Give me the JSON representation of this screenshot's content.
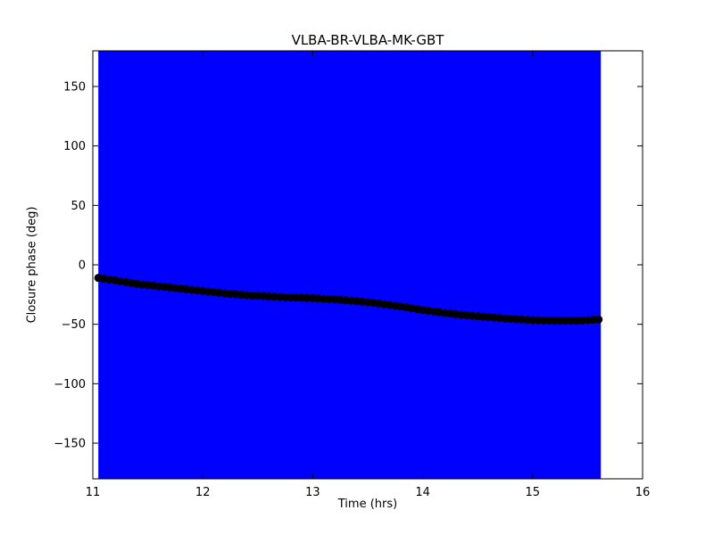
{
  "figure": {
    "background": "#ffffff"
  },
  "chart_data": {
    "type": "scatter",
    "title": "VLBA-BR-VLBA-MK-GBT",
    "xlabel": "Time (hrs)",
    "ylabel": "Closure phase (deg)",
    "xlim": [
      11,
      16
    ],
    "ylim": [
      -180,
      180
    ],
    "xticks": [
      11,
      12,
      13,
      14,
      15,
      16
    ],
    "xtick_labels": [
      "11",
      "12",
      "13",
      "14",
      "15",
      "16"
    ],
    "yticks": [
      -150,
      -100,
      -50,
      0,
      50,
      100,
      150
    ],
    "ytick_labels": [
      "−150",
      "−100",
      "−50",
      "0",
      "50",
      "100",
      "150"
    ],
    "grid": false,
    "legend": "none",
    "marker_color": "#000000",
    "error_region": {
      "x_start": 11.05,
      "x_end": 15.62,
      "y_min": -180,
      "y_max": 180,
      "color": "#0000ff"
    },
    "series": [
      {
        "name": "closure phase",
        "x": [
          11.05,
          11.2,
          11.4,
          11.6,
          11.8,
          12.0,
          12.2,
          12.4,
          12.6,
          12.8,
          13.0,
          13.2,
          13.4,
          13.6,
          13.8,
          14.0,
          14.2,
          14.4,
          14.6,
          14.8,
          15.0,
          15.2,
          15.4,
          15.6
        ],
        "y": [
          -11,
          -13,
          -16,
          -18,
          -20,
          -22,
          -24,
          -25.5,
          -26.5,
          -27.5,
          -28,
          -29,
          -30.5,
          -32.5,
          -35,
          -38,
          -40.5,
          -42.5,
          -44,
          -45.5,
          -46.5,
          -47,
          -47,
          -46
        ]
      }
    ]
  }
}
